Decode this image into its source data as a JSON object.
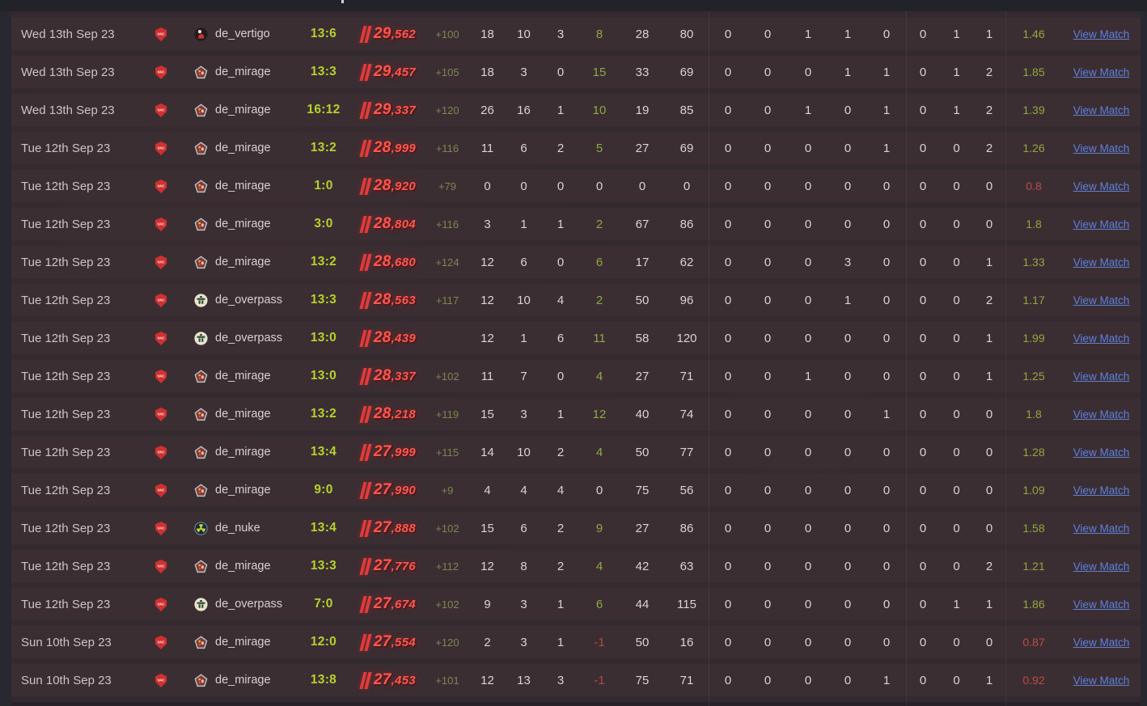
{
  "table": {
    "view_match_label": "View Match",
    "vac_label": "VAC",
    "colors": {
      "score_green": "#b5d22b",
      "badge_red": "#ff5750",
      "positive_green": "#8fa843",
      "negative_red": "#b34943",
      "rating_green": "#93a73d",
      "rating_red": "#c04a45",
      "link_blue": "#5e80dc",
      "vac_red": "#d13030"
    }
  },
  "rows": [
    {
      "date": "Wed 13th Sep 23",
      "vac": "VAC",
      "map": "de_vertigo",
      "score": "13:6",
      "premier_rating": "29,562",
      "rating_change": "+100",
      "kills": "18",
      "deaths": "10",
      "assists": "3",
      "plus_minus": "8",
      "hs": "28",
      "adr": "80",
      "group1": [
        "0",
        "0",
        "1",
        "1",
        "0"
      ],
      "group2": [
        "0",
        "1",
        "1"
      ],
      "rating": "1.46"
    },
    {
      "date": "Wed 13th Sep 23",
      "vac": "VAC",
      "map": "de_mirage",
      "score": "13:3",
      "premier_rating": "29,457",
      "rating_change": "+105",
      "kills": "18",
      "deaths": "3",
      "assists": "0",
      "plus_minus": "15",
      "hs": "33",
      "adr": "69",
      "group1": [
        "0",
        "0",
        "0",
        "1",
        "1"
      ],
      "group2": [
        "0",
        "1",
        "2"
      ],
      "rating": "1.85"
    },
    {
      "date": "Wed 13th Sep 23",
      "vac": "VAC",
      "map": "de_mirage",
      "score": "16:12",
      "premier_rating": "29,337",
      "rating_change": "+120",
      "kills": "26",
      "deaths": "16",
      "assists": "1",
      "plus_minus": "10",
      "hs": "19",
      "adr": "85",
      "group1": [
        "0",
        "0",
        "1",
        "0",
        "1"
      ],
      "group2": [
        "0",
        "1",
        "2"
      ],
      "rating": "1.39"
    },
    {
      "date": "Tue 12th Sep 23",
      "vac": "VAC",
      "map": "de_mirage",
      "score": "13:2",
      "premier_rating": "28,999",
      "rating_change": "+116",
      "kills": "11",
      "deaths": "6",
      "assists": "2",
      "plus_minus": "5",
      "hs": "27",
      "adr": "69",
      "group1": [
        "0",
        "0",
        "0",
        "0",
        "1"
      ],
      "group2": [
        "0",
        "0",
        "2"
      ],
      "rating": "1.26"
    },
    {
      "date": "Tue 12th Sep 23",
      "vac": "VAC",
      "map": "de_mirage",
      "score": "1:0",
      "premier_rating": "28,920",
      "rating_change": "+79",
      "kills": "0",
      "deaths": "0",
      "assists": "0",
      "plus_minus": "0",
      "hs": "0",
      "adr": "0",
      "group1": [
        "0",
        "0",
        "0",
        "0",
        "0"
      ],
      "group2": [
        "0",
        "0",
        "0"
      ],
      "rating": "0.8"
    },
    {
      "date": "Tue 12th Sep 23",
      "vac": "VAC",
      "map": "de_mirage",
      "score": "3:0",
      "premier_rating": "28,804",
      "rating_change": "+116",
      "kills": "3",
      "deaths": "1",
      "assists": "1",
      "plus_minus": "2",
      "hs": "67",
      "adr": "86",
      "group1": [
        "0",
        "0",
        "0",
        "0",
        "0"
      ],
      "group2": [
        "0",
        "0",
        "0"
      ],
      "rating": "1.8"
    },
    {
      "date": "Tue 12th Sep 23",
      "vac": "VAC",
      "map": "de_mirage",
      "score": "13:2",
      "premier_rating": "28,680",
      "rating_change": "+124",
      "kills": "12",
      "deaths": "6",
      "assists": "0",
      "plus_minus": "6",
      "hs": "17",
      "adr": "62",
      "group1": [
        "0",
        "0",
        "0",
        "3",
        "0"
      ],
      "group2": [
        "0",
        "0",
        "1"
      ],
      "rating": "1.33"
    },
    {
      "date": "Tue 12th Sep 23",
      "vac": "VAC",
      "map": "de_overpass",
      "score": "13:3",
      "premier_rating": "28,563",
      "rating_change": "+117",
      "kills": "12",
      "deaths": "10",
      "assists": "4",
      "plus_minus": "2",
      "hs": "50",
      "adr": "96",
      "group1": [
        "0",
        "0",
        "0",
        "1",
        "0"
      ],
      "group2": [
        "0",
        "0",
        "2"
      ],
      "rating": "1.17"
    },
    {
      "date": "Tue 12th Sep 23",
      "vac": "VAC",
      "map": "de_overpass",
      "score": "13:0",
      "premier_rating": "28,439",
      "rating_change": null,
      "kills": "12",
      "deaths": "1",
      "assists": "6",
      "plus_minus": "11",
      "hs": "58",
      "adr": "120",
      "group1": [
        "0",
        "0",
        "0",
        "0",
        "0"
      ],
      "group2": [
        "0",
        "0",
        "1"
      ],
      "rating": "1.99"
    },
    {
      "date": "Tue 12th Sep 23",
      "vac": "VAC",
      "map": "de_mirage",
      "score": "13:0",
      "premier_rating": "28,337",
      "rating_change": "+102",
      "kills": "11",
      "deaths": "7",
      "assists": "0",
      "plus_minus": "4",
      "hs": "27",
      "adr": "71",
      "group1": [
        "0",
        "0",
        "1",
        "0",
        "0"
      ],
      "group2": [
        "0",
        "0",
        "1"
      ],
      "rating": "1.25"
    },
    {
      "date": "Tue 12th Sep 23",
      "vac": "VAC",
      "map": "de_mirage",
      "score": "13:2",
      "premier_rating": "28,218",
      "rating_change": "+119",
      "kills": "15",
      "deaths": "3",
      "assists": "1",
      "plus_minus": "12",
      "hs": "40",
      "adr": "74",
      "group1": [
        "0",
        "0",
        "0",
        "0",
        "1"
      ],
      "group2": [
        "0",
        "0",
        "0"
      ],
      "rating": "1.8"
    },
    {
      "date": "Tue 12th Sep 23",
      "vac": "VAC",
      "map": "de_mirage",
      "score": "13:4",
      "premier_rating": "27,999",
      "rating_change": "+115",
      "kills": "14",
      "deaths": "10",
      "assists": "2",
      "plus_minus": "4",
      "hs": "50",
      "adr": "77",
      "group1": [
        "0",
        "0",
        "0",
        "0",
        "0"
      ],
      "group2": [
        "0",
        "0",
        "0"
      ],
      "rating": "1.28"
    },
    {
      "date": "Tue 12th Sep 23",
      "vac": "VAC",
      "map": "de_mirage",
      "score": "9:0",
      "premier_rating": "27,990",
      "rating_change": "+9",
      "kills": "4",
      "deaths": "4",
      "assists": "4",
      "plus_minus": "0",
      "hs": "75",
      "adr": "56",
      "group1": [
        "0",
        "0",
        "0",
        "0",
        "0"
      ],
      "group2": [
        "0",
        "0",
        "0"
      ],
      "rating": "1.09"
    },
    {
      "date": "Tue 12th Sep 23",
      "vac": "VAC",
      "map": "de_nuke",
      "score": "13:4",
      "premier_rating": "27,888",
      "rating_change": "+102",
      "kills": "15",
      "deaths": "6",
      "assists": "2",
      "plus_minus": "9",
      "hs": "27",
      "adr": "86",
      "group1": [
        "0",
        "0",
        "0",
        "0",
        "0"
      ],
      "group2": [
        "0",
        "0",
        "0"
      ],
      "rating": "1.58"
    },
    {
      "date": "Tue 12th Sep 23",
      "vac": "VAC",
      "map": "de_mirage",
      "score": "13:3",
      "premier_rating": "27,776",
      "rating_change": "+112",
      "kills": "12",
      "deaths": "8",
      "assists": "2",
      "plus_minus": "4",
      "hs": "42",
      "adr": "63",
      "group1": [
        "0",
        "0",
        "0",
        "0",
        "0"
      ],
      "group2": [
        "0",
        "0",
        "2"
      ],
      "rating": "1.21"
    },
    {
      "date": "Tue 12th Sep 23",
      "vac": "VAC",
      "map": "de_overpass",
      "score": "7:0",
      "premier_rating": "27,674",
      "rating_change": "+102",
      "kills": "9",
      "deaths": "3",
      "assists": "1",
      "plus_minus": "6",
      "hs": "44",
      "adr": "115",
      "group1": [
        "0",
        "0",
        "0",
        "0",
        "0"
      ],
      "group2": [
        "0",
        "1",
        "1"
      ],
      "rating": "1.86"
    },
    {
      "date": "Sun 10th Sep 23",
      "vac": "VAC",
      "map": "de_mirage",
      "score": "12:0",
      "premier_rating": "27,554",
      "rating_change": "+120",
      "kills": "2",
      "deaths": "3",
      "assists": "1",
      "plus_minus": "-1",
      "hs": "50",
      "adr": "16",
      "group1": [
        "0",
        "0",
        "0",
        "0",
        "0"
      ],
      "group2": [
        "0",
        "0",
        "0"
      ],
      "rating": "0.87"
    },
    {
      "date": "Sun 10th Sep 23",
      "vac": "VAC",
      "map": "de_mirage",
      "score": "13:8",
      "premier_rating": "27,453",
      "rating_change": "+101",
      "kills": "12",
      "deaths": "13",
      "assists": "3",
      "plus_minus": "-1",
      "hs": "75",
      "adr": "71",
      "group1": [
        "0",
        "0",
        "0",
        "0",
        "1"
      ],
      "group2": [
        "0",
        "0",
        "1"
      ],
      "rating": "0.92"
    }
  ]
}
